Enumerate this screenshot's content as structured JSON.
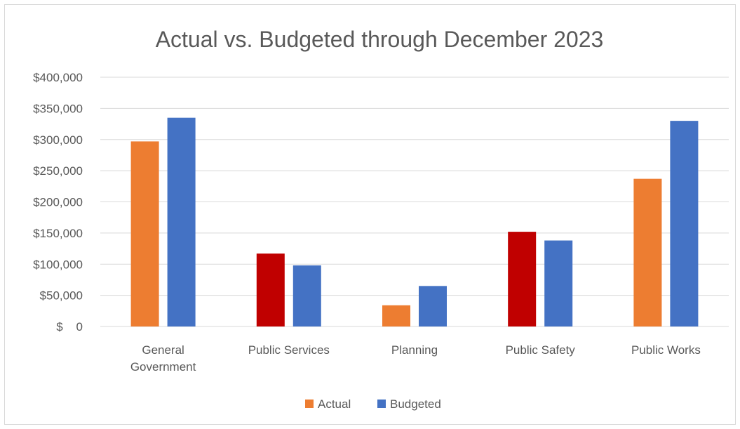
{
  "chart_data": {
    "type": "bar",
    "title": "Actual vs. Budgeted through December 2023",
    "xlabel": "",
    "ylabel": "",
    "categories": [
      [
        "General",
        "Government"
      ],
      [
        "Public Services"
      ],
      [
        "Planning"
      ],
      [
        "Public Safety"
      ],
      [
        "Public Works"
      ]
    ],
    "series": [
      {
        "name": "Actual",
        "values": [
          297000,
          117000,
          34000,
          152000,
          237000
        ],
        "color": "#ED7D31",
        "point_colors": [
          "#ED7D31",
          "#C00000",
          "#ED7D31",
          "#C00000",
          "#ED7D31"
        ]
      },
      {
        "name": "Budgeted",
        "values": [
          335000,
          98000,
          65000,
          138000,
          330000
        ],
        "color": "#4472C4"
      }
    ],
    "ylim": [
      0,
      400000
    ],
    "yticks": [
      {
        "value": 0,
        "label": "$    0"
      },
      {
        "value": 50000,
        "label": "$50,000"
      },
      {
        "value": 100000,
        "label": "$100,000"
      },
      {
        "value": 150000,
        "label": "$150,000"
      },
      {
        "value": 200000,
        "label": "$200,000"
      },
      {
        "value": 250000,
        "label": "$250,000"
      },
      {
        "value": 300000,
        "label": "$300,000"
      },
      {
        "value": 350000,
        "label": "$350,000"
      },
      {
        "value": 400000,
        "label": "$400,000"
      }
    ],
    "grid": true,
    "legend_position": "bottom-center"
  }
}
